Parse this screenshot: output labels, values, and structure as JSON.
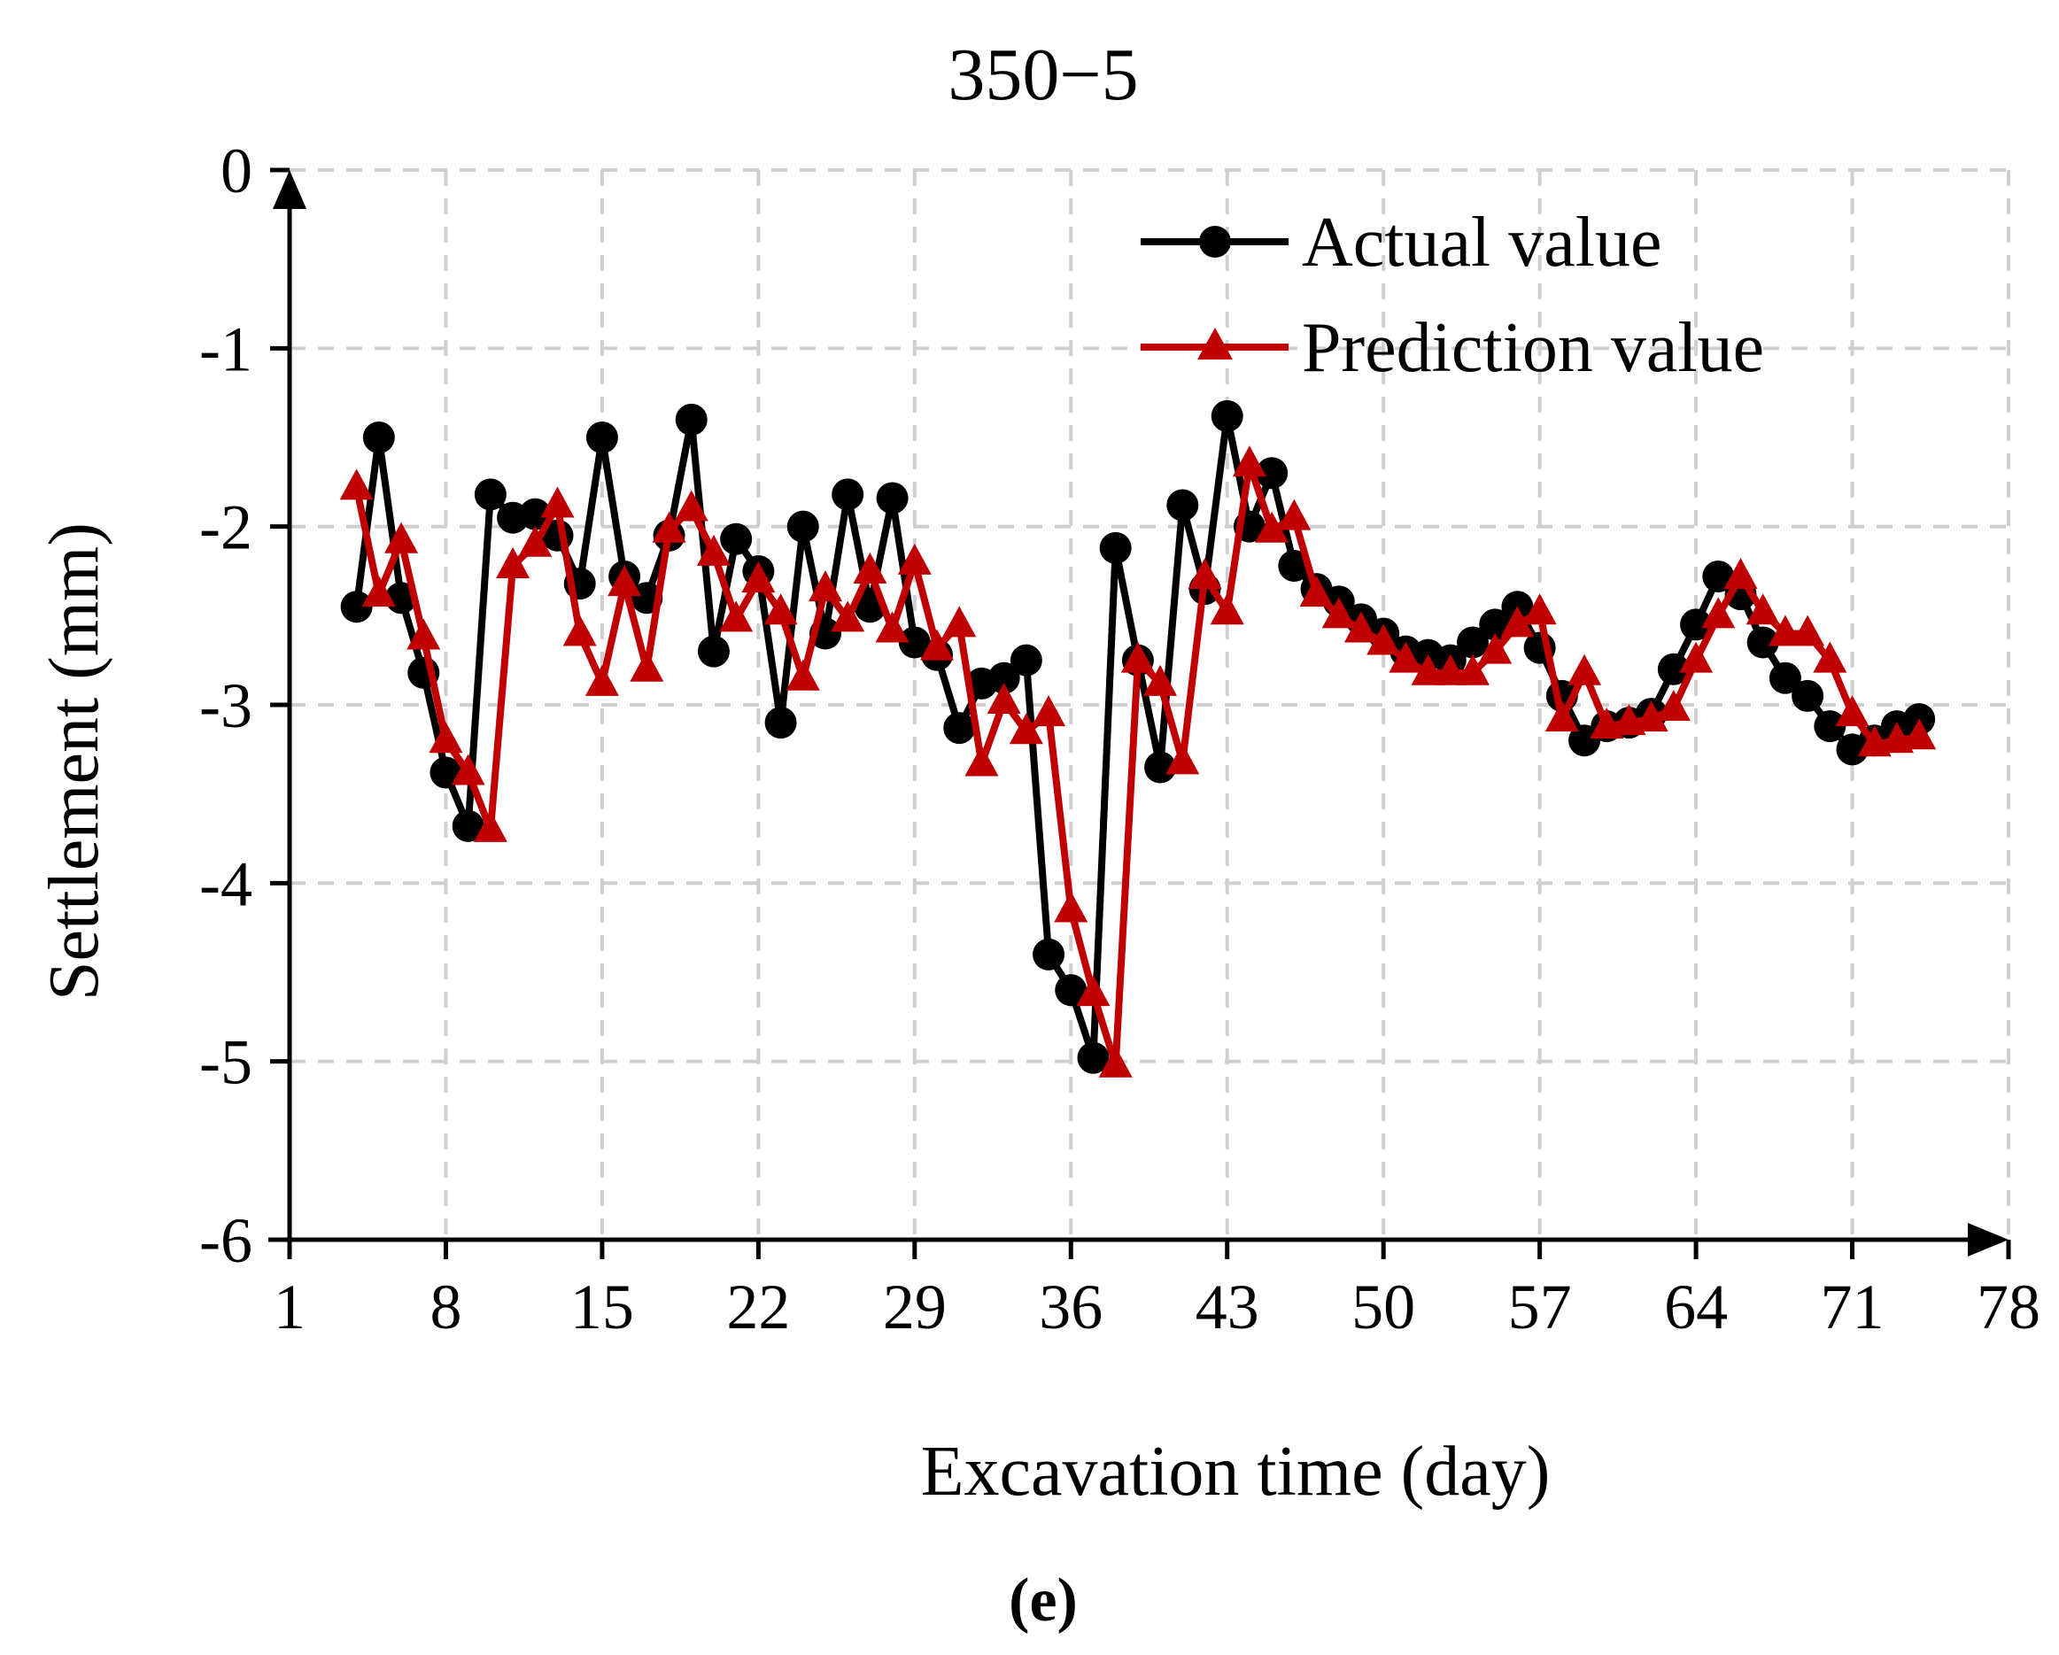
{
  "chart_data": {
    "type": "line",
    "title": "350−5",
    "xlabel": "Excavation time (day)",
    "ylabel": "Settlement (mm)",
    "panel_label": "(e)",
    "xlim": [
      1,
      78
    ],
    "ylim": [
      -6,
      0
    ],
    "xticks": [
      1,
      8,
      15,
      22,
      29,
      36,
      43,
      50,
      57,
      64,
      71,
      78
    ],
    "yticks": [
      0,
      -1,
      -2,
      -3,
      -4,
      -5,
      -6
    ],
    "legend_position": "top-right",
    "series": [
      {
        "name": "Actual value",
        "color": "#000000",
        "marker": "circle",
        "x": [
          4,
          5,
          6,
          7,
          8,
          9,
          10,
          11,
          12,
          13,
          14,
          15,
          16,
          17,
          18,
          19,
          20,
          21,
          22,
          23,
          24,
          25,
          26,
          27,
          28,
          29,
          30,
          31,
          32,
          33,
          34,
          35,
          36,
          37,
          38,
          39,
          40,
          41,
          42,
          43,
          44,
          45,
          46,
          47,
          48,
          49,
          50,
          51,
          52,
          53,
          54,
          55,
          56,
          57,
          58,
          59,
          60,
          61,
          62,
          63,
          64,
          65,
          66,
          67,
          68,
          69,
          70,
          71,
          72,
          73,
          74
        ],
        "y": [
          -2.45,
          -1.5,
          -2.4,
          -2.82,
          -3.38,
          -3.68,
          -1.82,
          -1.95,
          -1.93,
          -2.05,
          -2.32,
          -1.5,
          -2.28,
          -2.4,
          -2.05,
          -1.4,
          -2.7,
          -2.07,
          -2.25,
          -3.1,
          -2.0,
          -2.6,
          -1.82,
          -2.45,
          -1.84,
          -2.65,
          -2.72,
          -3.13,
          -2.88,
          -2.85,
          -2.75,
          -4.4,
          -4.6,
          -4.98,
          -2.12,
          -2.75,
          -3.35,
          -1.88,
          -2.35,
          -1.38,
          -2.0,
          -1.7,
          -2.22,
          -2.35,
          -2.42,
          -2.52,
          -2.6,
          -2.7,
          -2.72,
          -2.75,
          -2.65,
          -2.55,
          -2.45,
          -2.68,
          -2.95,
          -3.2,
          -3.12,
          -3.1,
          -3.05,
          -2.8,
          -2.55,
          -2.28,
          -2.38,
          -2.65,
          -2.85,
          -2.95,
          -3.12,
          -3.25,
          -3.2,
          -3.12,
          -3.08
        ]
      },
      {
        "name": "Prediction value",
        "color": "#c00000",
        "marker": "triangle",
        "x": [
          4,
          5,
          6,
          7,
          8,
          9,
          10,
          11,
          12,
          13,
          14,
          15,
          16,
          17,
          18,
          19,
          20,
          21,
          22,
          23,
          24,
          25,
          26,
          27,
          28,
          29,
          30,
          31,
          32,
          33,
          34,
          35,
          36,
          37,
          38,
          39,
          40,
          41,
          42,
          43,
          44,
          45,
          46,
          47,
          48,
          49,
          50,
          51,
          52,
          53,
          54,
          55,
          56,
          57,
          58,
          59,
          60,
          61,
          62,
          63,
          64,
          65,
          66,
          67,
          68,
          69,
          70,
          71,
          72,
          73,
          74
        ],
        "y": [
          -1.78,
          -2.38,
          -2.08,
          -2.62,
          -3.2,
          -3.38,
          -3.7,
          -2.22,
          -2.1,
          -1.88,
          -2.6,
          -2.88,
          -2.32,
          -2.8,
          -2.02,
          -1.9,
          -2.15,
          -2.52,
          -2.3,
          -2.48,
          -2.85,
          -2.35,
          -2.52,
          -2.25,
          -2.58,
          -2.2,
          -2.68,
          -2.55,
          -3.33,
          -2.98,
          -3.15,
          -3.05,
          -4.15,
          -4.62,
          -5.02,
          -2.75,
          -2.88,
          -3.32,
          -2.28,
          -2.48,
          -1.65,
          -2.02,
          -1.95,
          -2.38,
          -2.5,
          -2.58,
          -2.65,
          -2.75,
          -2.82,
          -2.82,
          -2.82,
          -2.7,
          -2.55,
          -2.48,
          -3.08,
          -2.82,
          -3.12,
          -3.1,
          -3.08,
          -3.02,
          -2.75,
          -2.5,
          -2.28,
          -2.48,
          -2.6,
          -2.6,
          -2.75,
          -3.05,
          -3.22,
          -3.2,
          -3.18
        ]
      }
    ]
  }
}
